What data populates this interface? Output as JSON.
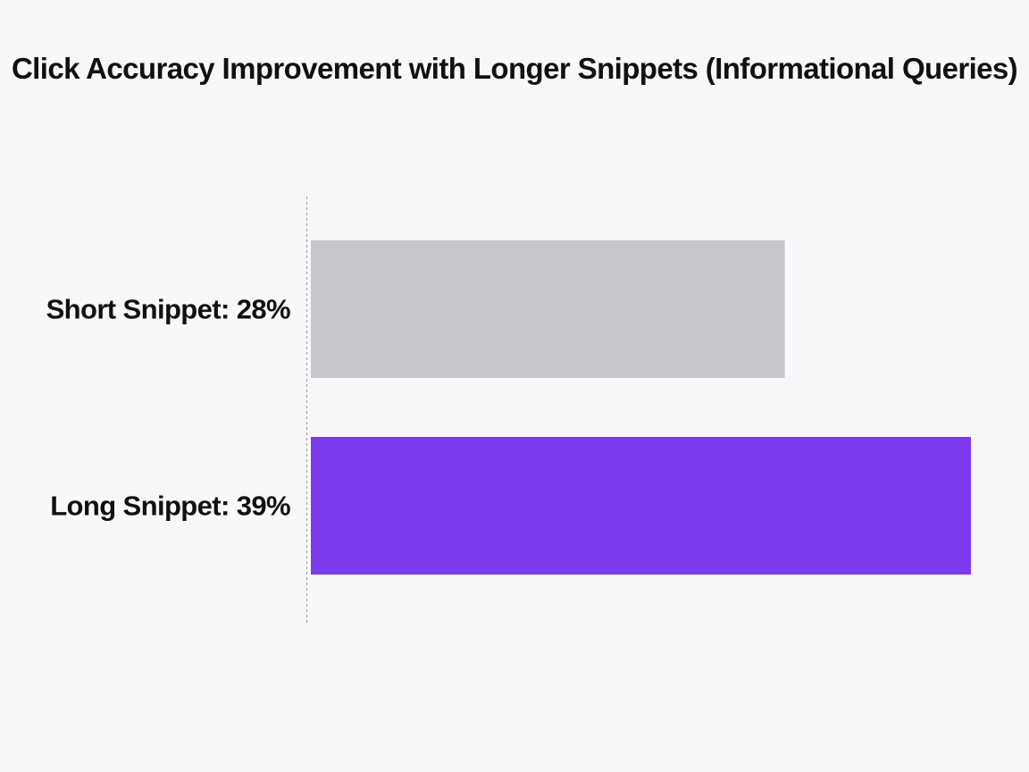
{
  "chart_data": {
    "type": "bar",
    "orientation": "horizontal",
    "title": "Click Accuracy Improvement with Longer Snippets (Informational Queries)",
    "xlabel": "",
    "ylabel": "",
    "xlim": [
      0,
      39
    ],
    "grid": false,
    "legend": "none",
    "categories": [
      "Short Snippet",
      "Long Snippet"
    ],
    "values": [
      28,
      39
    ],
    "unit": "%",
    "labels": [
      "Short Snippet: 28%",
      "Long Snippet: 39%"
    ],
    "colors": [
      "#c6c7cb",
      "#7c3aed"
    ]
  },
  "colors": {
    "background": "#f8f8fa",
    "axis_line": "#9a9a9a"
  }
}
